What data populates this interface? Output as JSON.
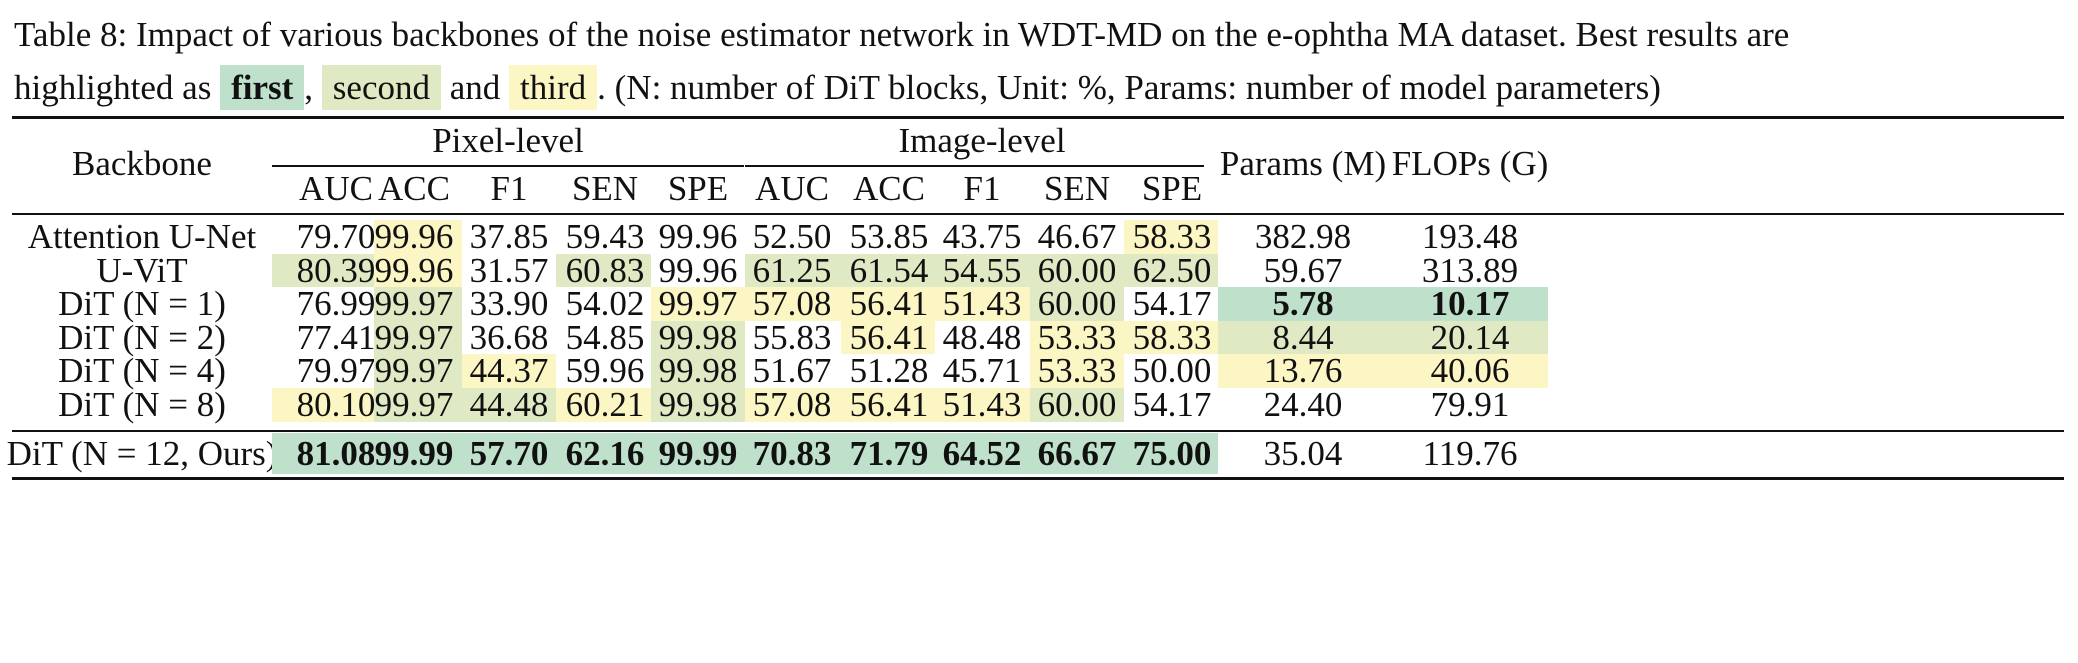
{
  "caption": {
    "line1": "Table 8: Impact of various backbones of the noise estimator network in WDT-MD on the e-ophtha MA dataset. Best results are",
    "line2_prefix": "highlighted as ",
    "first": "first",
    "comma": ",",
    "second": "second",
    "and": " and ",
    "third": "third",
    "suffix": ". (N: number of DiT blocks, Unit: %, Params: number of model parameters)"
  },
  "colors": {
    "first": "#bfe0cb",
    "second": "#dfe9c4",
    "third": "#fcf5c4"
  },
  "table": {
    "header": {
      "backbone": "Backbone",
      "pixel_group": "Pixel-level",
      "image_group": "Image-level",
      "params": "Params (M)",
      "flops": "FLOPs (G)",
      "metrics": [
        "AUC",
        "ACC",
        "F1",
        "SEN",
        "SPE",
        "AUC",
        "ACC",
        "F1",
        "SEN",
        "SPE"
      ]
    },
    "rows": [
      {
        "label": "Attention U-Net",
        "values": [
          "79.70",
          "99.96",
          "37.85",
          "59.43",
          "99.96",
          "52.50",
          "53.85",
          "43.75",
          "46.67",
          "58.33",
          "382.98",
          "193.48"
        ],
        "ranks": [
          0,
          3,
          0,
          0,
          0,
          0,
          0,
          0,
          0,
          3,
          0,
          0
        ]
      },
      {
        "label": "U-ViT",
        "values": [
          "80.39",
          "99.96",
          "31.57",
          "60.83",
          "99.96",
          "61.25",
          "61.54",
          "54.55",
          "60.00",
          "62.50",
          "59.67",
          "313.89"
        ],
        "ranks": [
          2,
          3,
          0,
          2,
          0,
          2,
          2,
          2,
          2,
          2,
          0,
          0
        ]
      },
      {
        "label": "DiT (N = 1)",
        "values": [
          "76.99",
          "99.97",
          "33.90",
          "54.02",
          "99.97",
          "57.08",
          "56.41",
          "51.43",
          "60.00",
          "54.17",
          "5.78",
          "10.17"
        ],
        "ranks": [
          0,
          2,
          0,
          0,
          3,
          3,
          3,
          3,
          2,
          0,
          1,
          1
        ]
      },
      {
        "label": "DiT (N = 2)",
        "values": [
          "77.41",
          "99.97",
          "36.68",
          "54.85",
          "99.98",
          "55.83",
          "56.41",
          "48.48",
          "53.33",
          "58.33",
          "8.44",
          "20.14"
        ],
        "ranks": [
          0,
          2,
          0,
          0,
          2,
          0,
          3,
          0,
          3,
          3,
          2,
          2
        ]
      },
      {
        "label": "DiT (N = 4)",
        "values": [
          "79.97",
          "99.97",
          "44.37",
          "59.96",
          "99.98",
          "51.67",
          "51.28",
          "45.71",
          "53.33",
          "50.00",
          "13.76",
          "40.06"
        ],
        "ranks": [
          0,
          2,
          3,
          0,
          2,
          0,
          0,
          0,
          3,
          0,
          3,
          3
        ]
      },
      {
        "label": "DiT (N = 8)",
        "values": [
          "80.10",
          "99.97",
          "44.48",
          "60.21",
          "99.98",
          "57.08",
          "56.41",
          "51.43",
          "60.00",
          "54.17",
          "24.40",
          "79.91"
        ],
        "ranks": [
          3,
          2,
          2,
          3,
          2,
          3,
          3,
          3,
          2,
          0,
          0,
          0
        ]
      }
    ],
    "ours": {
      "label": "DiT (N = 12, Ours)",
      "values": [
        "81.08",
        "99.99",
        "57.70",
        "62.16",
        "99.99",
        "70.83",
        "71.79",
        "64.52",
        "66.67",
        "75.00",
        "35.04",
        "119.76"
      ],
      "ranks": [
        1,
        1,
        1,
        1,
        1,
        1,
        1,
        1,
        1,
        1,
        0,
        0
      ]
    }
  }
}
